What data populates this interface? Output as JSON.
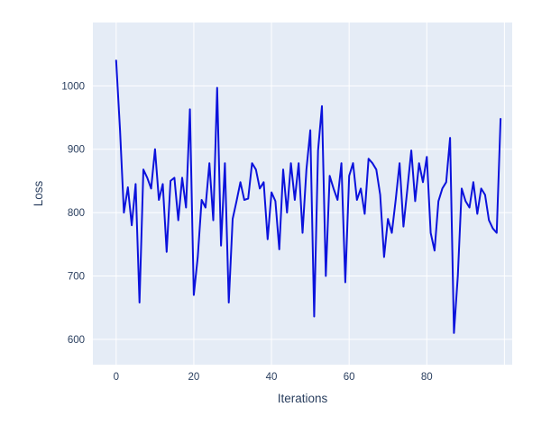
{
  "figure": {
    "background": "#ffffff",
    "plot_background": "#e5ecf6",
    "grid_color": "#ffffff",
    "text_color": "#2a3f5f",
    "line_color": "#0b12dc"
  },
  "chart_data": {
    "type": "line",
    "title": "",
    "xlabel": "Iterations",
    "ylabel": "Loss",
    "xlim": [
      -6,
      102
    ],
    "ylim": [
      560,
      1100
    ],
    "xticks": [
      0,
      20,
      40,
      60,
      80
    ],
    "xgrid": [
      0,
      20,
      40,
      60,
      80,
      100
    ],
    "yticks": [
      600,
      700,
      800,
      900,
      1000
    ],
    "grid": true,
    "legend": false,
    "x_start": 0,
    "x_step": 1,
    "series": [
      {
        "name": "loss",
        "values": [
          1040,
          930,
          800,
          840,
          780,
          845,
          658,
          868,
          855,
          838,
          900,
          820,
          845,
          738,
          850,
          855,
          788,
          855,
          808,
          963,
          670,
          730,
          820,
          808,
          878,
          788,
          997,
          748,
          878,
          658,
          790,
          818,
          848,
          820,
          822,
          878,
          868,
          838,
          848,
          758,
          832,
          818,
          742,
          868,
          800,
          878,
          820,
          878,
          768,
          868,
          930,
          636,
          898,
          968,
          700,
          858,
          838,
          820,
          878,
          690,
          858,
          878,
          820,
          838,
          798,
          885,
          878,
          868,
          828,
          730,
          790,
          768,
          820,
          878,
          778,
          838,
          898,
          818,
          878,
          848,
          888,
          768,
          740,
          818,
          838,
          848,
          918,
          610,
          700,
          838,
          818,
          808,
          848,
          798,
          838,
          828,
          788,
          775,
          768,
          948
        ]
      }
    ]
  }
}
